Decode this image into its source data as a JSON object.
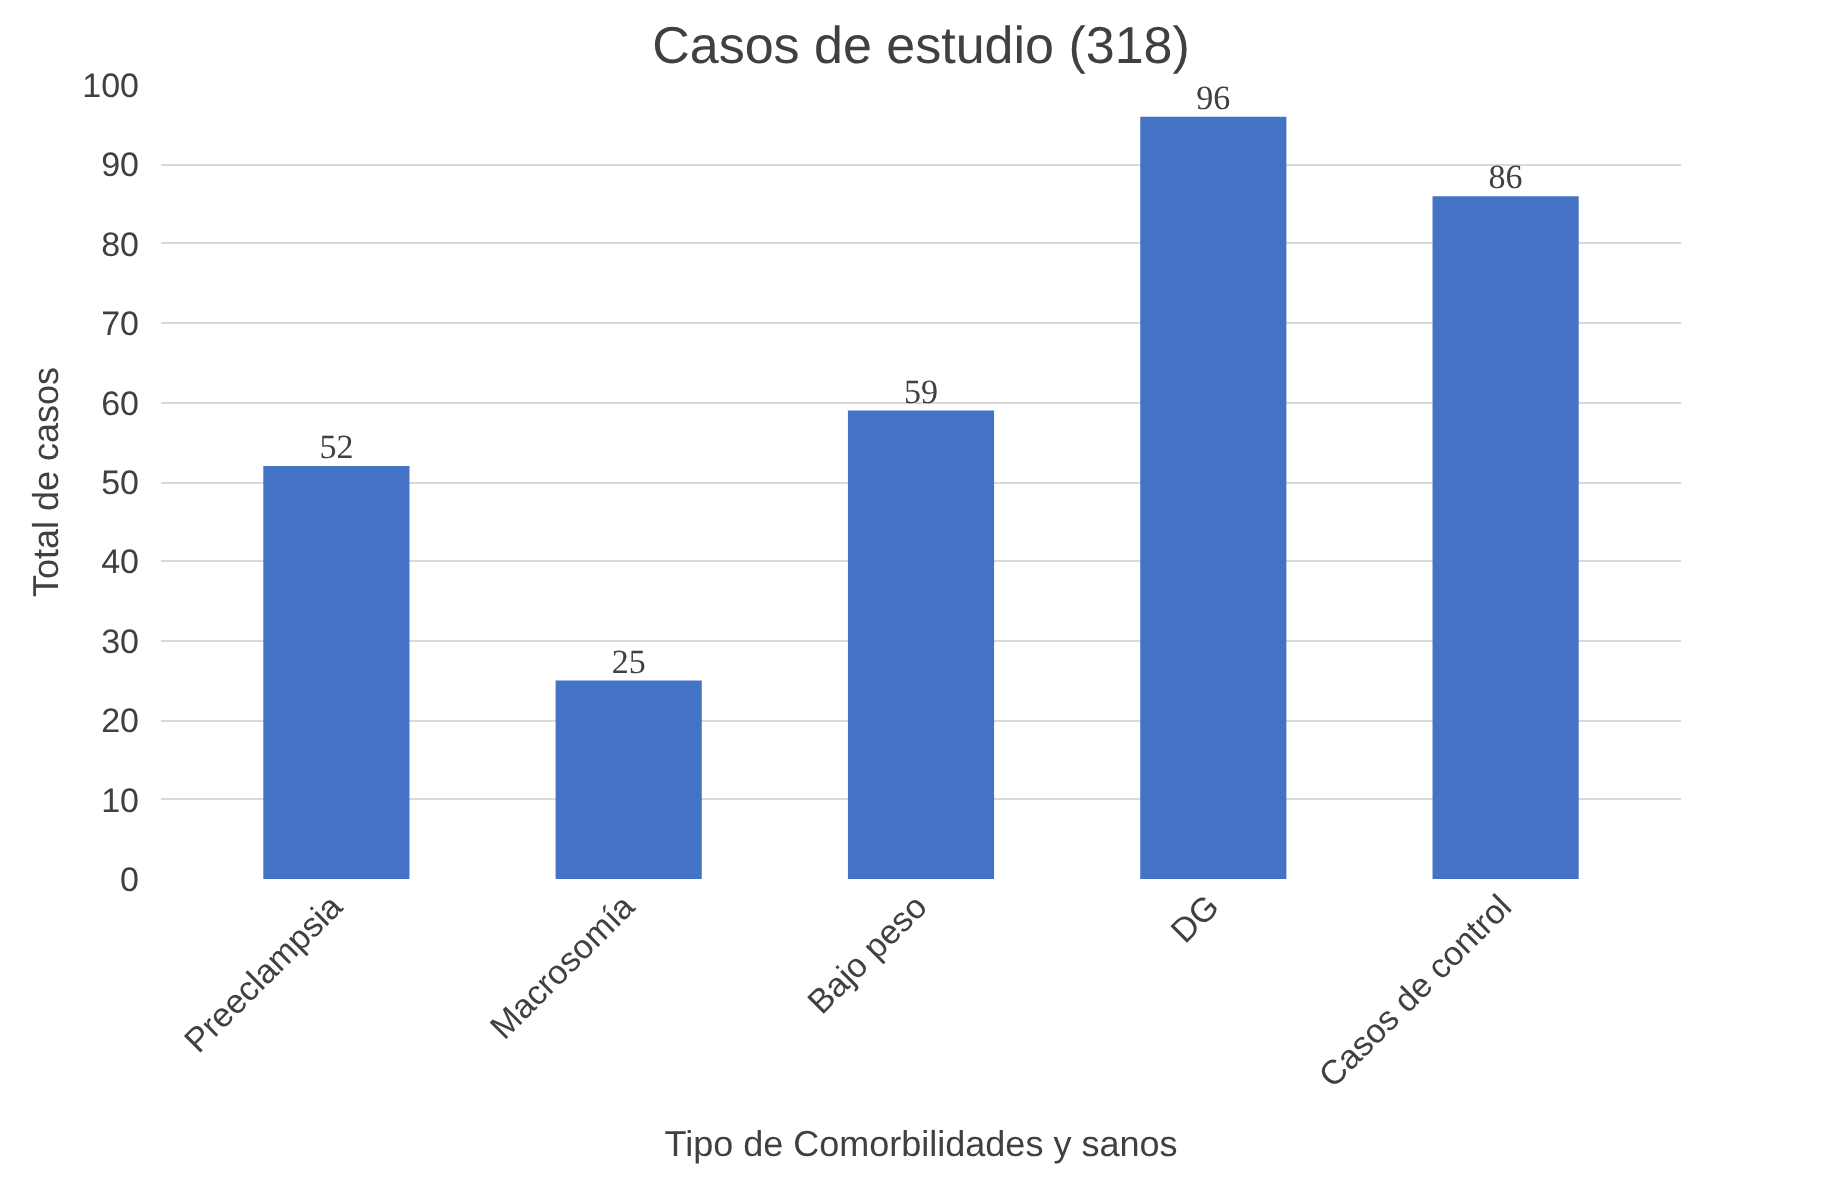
{
  "chart_data": {
    "type": "bar",
    "title": "Casos de estudio (318)",
    "xlabel": "Tipo de Comorbilidades y sanos",
    "ylabel": "Total de casos",
    "categories": [
      "Preeclampsia",
      "Macrosomía",
      "Bajo peso",
      "DG",
      "Casos de control"
    ],
    "values": [
      52,
      25,
      59,
      96,
      86
    ],
    "color": "#4472c4",
    "ylim": [
      0,
      100
    ],
    "yticks": [
      0,
      10,
      20,
      30,
      40,
      50,
      60,
      70,
      80,
      90,
      100
    ],
    "grid": "y",
    "data_labels": true
  }
}
